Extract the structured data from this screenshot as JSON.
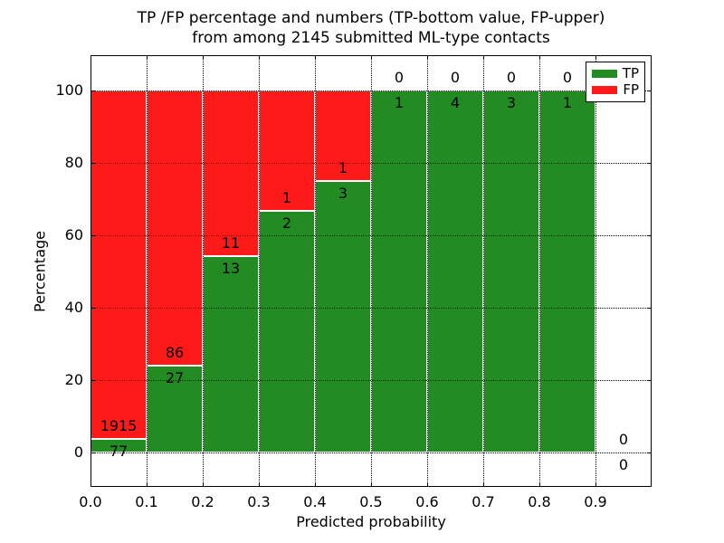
{
  "title": {
    "line1": "TP /FP percentage and numbers (TP-bottom value, FP-upper)",
    "line2": "from among 2145 submitted ML-type contacts"
  },
  "chart_data": {
    "type": "bar",
    "subtype": "stacked_percentage",
    "title": "TP /FP percentage and numbers (TP-bottom value, FP-upper) from among 2145 submitted ML-type contacts",
    "xlabel": "Predicted probability",
    "ylabel": "Percentage",
    "categories": [
      "0.0-0.1",
      "0.1-0.2",
      "0.2-0.3",
      "0.3-0.4",
      "0.4-0.5",
      "0.5-0.6",
      "0.6-0.7",
      "0.7-0.8",
      "0.8-0.9",
      "0.9-1.0"
    ],
    "bin_width": 0.1,
    "series": [
      {
        "name": "TP",
        "color": "#228b22",
        "counts": [
          77,
          27,
          13,
          2,
          3,
          1,
          4,
          3,
          1,
          0
        ]
      },
      {
        "name": "FP",
        "color": "#ff1a1a",
        "counts": [
          1915,
          86,
          11,
          1,
          1,
          0,
          0,
          0,
          0,
          0
        ]
      }
    ],
    "tp_percent_of_bin": [
      3.87,
      23.89,
      54.17,
      66.67,
      75.0,
      100.0,
      100.0,
      100.0,
      100.0,
      null
    ],
    "xticks": [
      "0.0",
      "0.1",
      "0.2",
      "0.3",
      "0.4",
      "0.5",
      "0.6",
      "0.7",
      "0.8",
      "0.9"
    ],
    "yticks": [
      0,
      20,
      40,
      60,
      80,
      100
    ],
    "xlim": [
      0.0,
      1.0
    ],
    "ylim": [
      -9.5,
      109.75
    ],
    "grid": "dotted",
    "legend_position": "upper right"
  },
  "legend": {
    "items": [
      {
        "label": "TP",
        "color": "#228b22"
      },
      {
        "label": "FP",
        "color": "#ff1a1a"
      }
    ]
  },
  "axes": {
    "xlabel": "Predicted probability",
    "ylabel": "Percentage"
  }
}
